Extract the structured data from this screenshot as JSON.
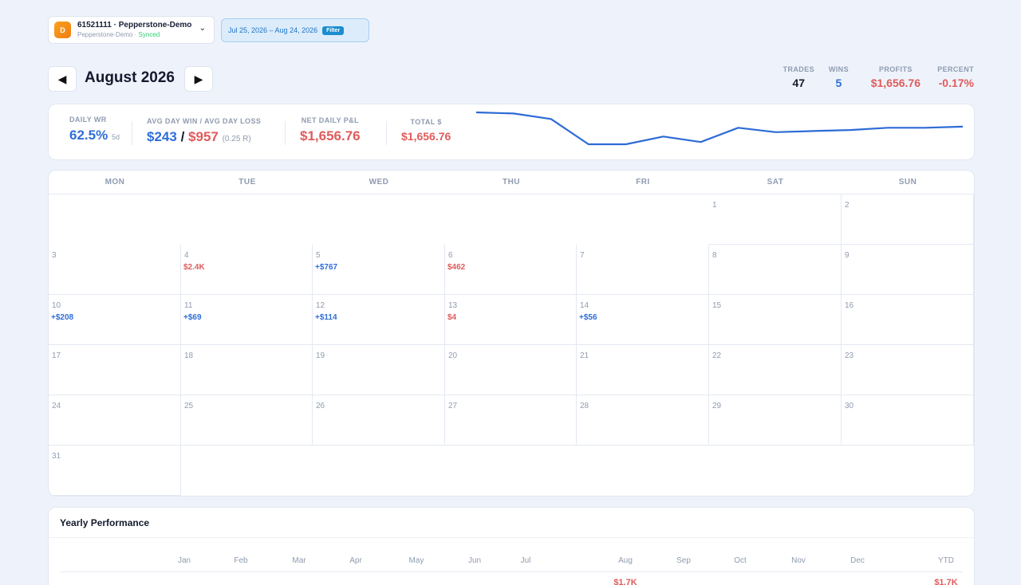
{
  "account": {
    "avatar_letter": "D",
    "name": "61521111 · Pepperstone-Demo",
    "sub": "Pepperstone-Demo · ",
    "status": "Synced"
  },
  "date_filter": {
    "range": "Jul 25, 2026 – Aug 24, 2026",
    "button": "Filter"
  },
  "month_nav": {
    "prev": "◀",
    "next": "▶",
    "title": "August 2026"
  },
  "top_stats": [
    {
      "label": "TRADES",
      "value": "47",
      "color": "#141a2e"
    },
    {
      "label": "WINS",
      "value": "5",
      "color": "#2f6ed8"
    },
    {
      "label": "PROFITS",
      "value": "$1,656.76",
      "color": "#e15b5b"
    },
    {
      "label": "PERCENT",
      "value": "-0.17%",
      "color": "#e15b5b"
    }
  ],
  "summary": {
    "daily_wr": {
      "label": "DAILY WR",
      "value": "62.5%",
      "sub": "5d"
    },
    "avg": {
      "label": "AVG DAY WIN / AVG DAY LOSS",
      "win": "$243",
      "slash": "/",
      "loss": "$957",
      "ratio": "(0.25 R)"
    },
    "net_daily": {
      "label": "NET DAILY P&L",
      "value": "$1,656.76"
    },
    "total": {
      "label": "TOTAL $",
      "value": "$1,656.76"
    }
  },
  "sparkline": {
    "values": [
      0,
      -1,
      -6,
      -29,
      -29,
      -22,
      -27,
      -14,
      -18,
      -17,
      -16,
      -14,
      -14,
      -13
    ]
  },
  "calendar": {
    "weekdays": [
      "MON",
      "TUE",
      "WED",
      "THU",
      "FRI",
      "SAT",
      "SUN"
    ],
    "weeks": [
      [
        null,
        null,
        null,
        null,
        null,
        {
          "day": "1",
          "pnl": ""
        },
        {
          "day": "2",
          "pnl": ""
        }
      ],
      [
        {
          "day": "3",
          "pnl": ""
        },
        {
          "day": "4",
          "pnl": "$2.4K",
          "tone": "loss"
        },
        {
          "day": "5",
          "pnl": "+$767",
          "tone": "win"
        },
        {
          "day": "6",
          "pnl": "$462",
          "tone": "loss"
        },
        {
          "day": "7",
          "pnl": ""
        },
        {
          "day": "8",
          "pnl": ""
        },
        {
          "day": "9",
          "pnl": ""
        }
      ],
      [
        {
          "day": "10",
          "pnl": "+$208",
          "tone": "win"
        },
        {
          "day": "11",
          "pnl": "+$69",
          "tone": "win"
        },
        {
          "day": "12",
          "pnl": "+$114",
          "tone": "win"
        },
        {
          "day": "13",
          "pnl": "$4",
          "tone": "loss"
        },
        {
          "day": "14",
          "pnl": "+$56",
          "tone": "win"
        },
        {
          "day": "15",
          "pnl": ""
        },
        {
          "day": "16",
          "pnl": ""
        }
      ],
      [
        {
          "day": "17",
          "pnl": ""
        },
        {
          "day": "18",
          "pnl": ""
        },
        {
          "day": "19",
          "pnl": ""
        },
        {
          "day": "20",
          "pnl": ""
        },
        {
          "day": "21",
          "pnl": ""
        },
        {
          "day": "22",
          "pnl": ""
        },
        {
          "day": "23",
          "pnl": ""
        }
      ],
      [
        {
          "day": "24",
          "pnl": ""
        },
        {
          "day": "25",
          "pnl": ""
        },
        {
          "day": "26",
          "pnl": ""
        },
        {
          "day": "27",
          "pnl": ""
        },
        {
          "day": "28",
          "pnl": ""
        },
        {
          "day": "29",
          "pnl": ""
        },
        {
          "day": "30",
          "pnl": ""
        }
      ],
      [
        {
          "day": "31",
          "pnl": ""
        },
        null,
        null,
        null,
        null,
        null,
        null
      ]
    ]
  },
  "yearly": {
    "title": "Yearly Performance",
    "months": [
      "Jan",
      "Feb",
      "Mar",
      "Apr",
      "May",
      "Jun",
      "Jul",
      "Aug",
      "Sep",
      "Oct",
      "Nov",
      "Dec",
      "YTD"
    ],
    "values": {
      "Aug": "$1.7K",
      "YTD": "$1.7K"
    }
  },
  "colors": {
    "win": "#2f6ed8",
    "loss": "#e15b5b",
    "accent": "#1b8dd1"
  }
}
